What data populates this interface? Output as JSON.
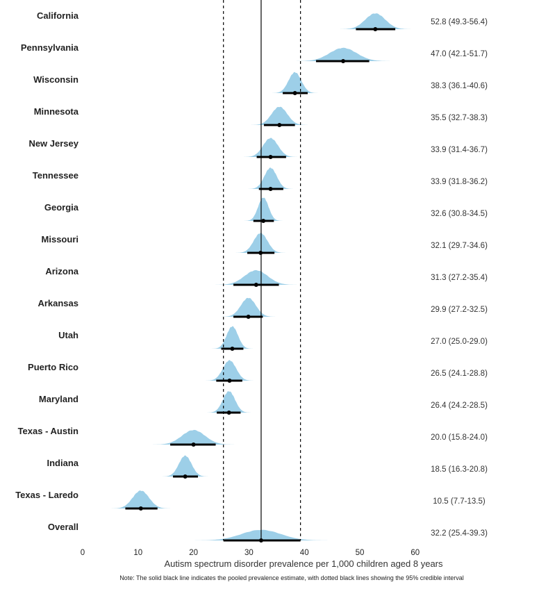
{
  "chart_data": {
    "type": "forest-density",
    "title": "",
    "xlabel": "Autism spectrum disorder prevalence per 1,000 children aged 8 years",
    "ylabel": "",
    "xlim": [
      0,
      60
    ],
    "x_ticks": [
      0,
      10,
      20,
      30,
      40,
      50,
      60
    ],
    "note": "Note: The solid black line indicates the pooled prevalence estimate, with dotted black lines showing the 95% credible interval",
    "pooled": {
      "estimate": 32.2,
      "lower": 25.4,
      "upper": 39.3
    },
    "density_color": "#9dcfe8",
    "rows": [
      {
        "label": "California",
        "estimate": 52.8,
        "lower": 49.3,
        "upper": 56.4,
        "text": "52.8 (49.3-56.4)"
      },
      {
        "label": "Pennsylvania",
        "estimate": 47.0,
        "lower": 42.1,
        "upper": 51.7,
        "text": "47.0 (42.1-51.7)"
      },
      {
        "label": "Wisconsin",
        "estimate": 38.3,
        "lower": 36.1,
        "upper": 40.6,
        "text": "38.3 (36.1-40.6)"
      },
      {
        "label": "Minnesota",
        "estimate": 35.5,
        "lower": 32.7,
        "upper": 38.3,
        "text": "35.5 (32.7-38.3)"
      },
      {
        "label": "New Jersey",
        "estimate": 33.9,
        "lower": 31.4,
        "upper": 36.7,
        "text": "33.9 (31.4-36.7)"
      },
      {
        "label": "Tennessee",
        "estimate": 33.9,
        "lower": 31.8,
        "upper": 36.2,
        "text": "33.9 (31.8-36.2)"
      },
      {
        "label": "Georgia",
        "estimate": 32.6,
        "lower": 30.8,
        "upper": 34.5,
        "text": "32.6 (30.8-34.5)"
      },
      {
        "label": "Missouri",
        "estimate": 32.1,
        "lower": 29.7,
        "upper": 34.6,
        "text": "32.1 (29.7-34.6)"
      },
      {
        "label": "Arizona",
        "estimate": 31.3,
        "lower": 27.2,
        "upper": 35.4,
        "text": "31.3 (27.2-35.4)"
      },
      {
        "label": "Arkansas",
        "estimate": 29.9,
        "lower": 27.2,
        "upper": 32.5,
        "text": "29.9 (27.2-32.5)"
      },
      {
        "label": "Utah",
        "estimate": 27.0,
        "lower": 25.0,
        "upper": 29.0,
        "text": "27.0 (25.0-29.0)"
      },
      {
        "label": "Puerto Rico",
        "estimate": 26.5,
        "lower": 24.1,
        "upper": 28.8,
        "text": "26.5 (24.1-28.8)"
      },
      {
        "label": "Maryland",
        "estimate": 26.4,
        "lower": 24.2,
        "upper": 28.5,
        "text": "26.4 (24.2-28.5)"
      },
      {
        "label": "Texas - Austin",
        "estimate": 20.0,
        "lower": 15.8,
        "upper": 24.0,
        "text": "20.0 (15.8-24.0)"
      },
      {
        "label": "Indiana",
        "estimate": 18.5,
        "lower": 16.3,
        "upper": 20.8,
        "text": "18.5 (16.3-20.8)"
      },
      {
        "label": "Texas - Laredo",
        "estimate": 10.5,
        "lower": 7.7,
        "upper": 13.5,
        "text": "10.5 (7.7-13.5)"
      },
      {
        "label": "Overall",
        "estimate": 32.2,
        "lower": 25.4,
        "upper": 39.3,
        "text": "32.2 (25.4-39.3)"
      }
    ]
  }
}
